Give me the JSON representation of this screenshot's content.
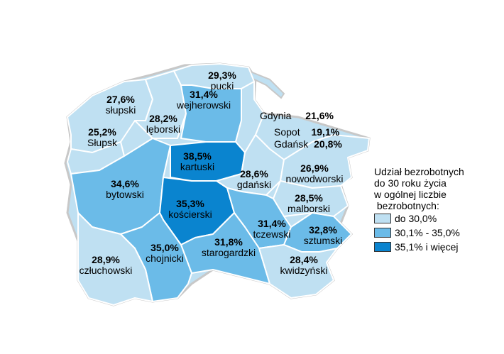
{
  "colors": {
    "low": "#bfe0f2",
    "mid": "#6bbbe8",
    "high": "#0a84cf"
  },
  "regions": [
    {
      "name": "pucki",
      "value": "29,3%",
      "class": "low"
    },
    {
      "name": "wejherowski",
      "value": "31,4%",
      "class": "mid"
    },
    {
      "name": "słupski",
      "value": "27,6%",
      "class": "low"
    },
    {
      "name": "lęborski",
      "value": "28,2%",
      "class": "low"
    },
    {
      "name": "Słupsk",
      "value": "25,2%",
      "class": "low"
    },
    {
      "name": "kartuski",
      "value": "38,5%",
      "class": "high"
    },
    {
      "name": "gdański",
      "value": "28,6%",
      "class": "low"
    },
    {
      "name": "nowodworski",
      "value": "26,9%",
      "class": "low"
    },
    {
      "name": "bytowski",
      "value": "34,6%",
      "class": "mid"
    },
    {
      "name": "kościerski",
      "value": "35,3%",
      "class": "high"
    },
    {
      "name": "malborski",
      "value": "28,5%",
      "class": "low"
    },
    {
      "name": "tczewski",
      "value": "31,4%",
      "class": "mid"
    },
    {
      "name": "sztumski",
      "value": "32,8%",
      "class": "mid"
    },
    {
      "name": "starogardzki",
      "value": "31,8%",
      "class": "mid"
    },
    {
      "name": "chojnicki",
      "value": "35,0%",
      "class": "mid"
    },
    {
      "name": "człuchowski",
      "value": "28,9%",
      "class": "low"
    },
    {
      "name": "kwidzyński",
      "value": "28,4%",
      "class": "low"
    }
  ],
  "cities": [
    {
      "name": "Gdynia",
      "value": "21,6%"
    },
    {
      "name": "Sopot",
      "value": "19,1%"
    },
    {
      "name": "Gdańsk",
      "value": "20,8%"
    }
  ],
  "legend": {
    "title_lines": [
      "Udział bezrobotnych",
      "do 30 roku życia",
      "w ogólnej liczbie",
      " bezrobotnych:"
    ],
    "items": [
      {
        "label": "do 30,0%",
        "class": "low"
      },
      {
        "label": "30,1% - 35,0%",
        "class": "mid"
      },
      {
        "label": "35,1% i więcej",
        "class": "high"
      }
    ]
  }
}
